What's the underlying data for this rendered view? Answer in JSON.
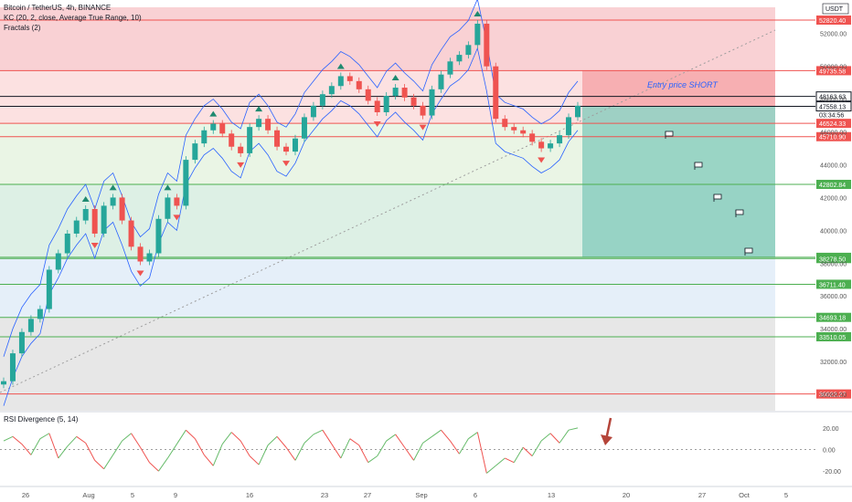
{
  "legend": {
    "symbol": "Bitcoin / TetherUS, 4h, BINANCE",
    "indicator1": "KC (20, 2, close, Average True Range, 10)",
    "indicator2": "Fractals (2)"
  },
  "currency_badge": "USDT",
  "annotation": "Entry price SHORT",
  "rsi_title": "RSI Divergence (5, 14)",
  "chart_data": {
    "type": "line",
    "x_ticks": [
      "26",
      "Aug",
      "5",
      "9",
      "16",
      "23",
      "27",
      "Sep",
      "6",
      "13",
      "20",
      "27",
      "Oct",
      "5"
    ],
    "y_ticks": [
      52000,
      50000,
      48000,
      46000,
      44000,
      42000,
      40000,
      38000,
      36000,
      34000,
      32000,
      30000
    ],
    "y_ticks_labels": [
      "52000.00",
      "50000.00",
      "48000.00",
      "46000.00",
      "44000.00",
      "42000.00",
      "40000.00",
      "38000.00",
      "36000.00",
      "34000.00",
      "32000.00",
      "30000.00"
    ],
    "ylim": [
      29000,
      53600
    ],
    "price_levels": [
      {
        "value": 52820.4,
        "label": "52820.40",
        "color": "#ef5350"
      },
      {
        "value": 49735.58,
        "label": "49735.58",
        "color": "#ef5350"
      },
      {
        "value": 48163.63,
        "label": "48163.63",
        "color": "#131722"
      },
      {
        "value": 47558.13,
        "label": "47558.13",
        "color": "#131722"
      },
      {
        "value": 46524.33,
        "label": "46524.33",
        "color": "#ef5350"
      },
      {
        "value": 45710.9,
        "label": "45710.90",
        "color": "#ef5350"
      },
      {
        "value": 42802.84,
        "label": "42802.84",
        "color": "#4caf50"
      },
      {
        "value": 38355.15,
        "label": "38355.15",
        "color": "#4caf50"
      },
      {
        "value": 38278.5,
        "label": "38278.50",
        "color": "#4caf50"
      },
      {
        "value": 36711.4,
        "label": "36711.40",
        "color": "#4caf50"
      },
      {
        "value": 34693.18,
        "label": "34693.18",
        "color": "#4caf50"
      },
      {
        "value": 33510.05,
        "label": "33510.05",
        "color": "#4caf50"
      },
      {
        "value": 30022.27,
        "label": "30022.27",
        "color": "#ef5350"
      }
    ],
    "countdown": "03:34:56",
    "price_series": [
      30800,
      32500,
      33800,
      34600,
      35200,
      37600,
      38600,
      39800,
      40600,
      41300,
      39800,
      41500,
      42000,
      40600,
      39000,
      38100,
      38600,
      40700,
      42000,
      41500,
      44300,
      45300,
      46100,
      46500,
      45900,
      45100,
      44700,
      46300,
      46800,
      46100,
      45100,
      44800,
      45600,
      46900,
      47600,
      48300,
      48800,
      49400,
      49100,
      48600,
      47900,
      47200,
      48200,
      48700,
      48100,
      47600,
      47000,
      48600,
      49500,
      50300,
      50700,
      51300,
      52600,
      50000,
      46800,
      46300,
      46100,
      45900,
      45400,
      45000,
      45300,
      45800,
      46900,
      47600
    ],
    "rsi_ticks": [
      "20.00",
      "0.00",
      "-20.00"
    ],
    "rsi_ylim": [
      -30,
      30
    ],
    "rsi_series": [
      8,
      12,
      5,
      -5,
      10,
      15,
      -8,
      3,
      12,
      6,
      -10,
      -18,
      -5,
      8,
      15,
      2,
      -12,
      -20,
      -8,
      5,
      18,
      10,
      -5,
      -15,
      5,
      16,
      8,
      -6,
      -14,
      4,
      12,
      2,
      -10,
      6,
      14,
      18,
      5,
      -8,
      10,
      4,
      -12,
      -6,
      8,
      14,
      2,
      -10,
      6,
      12,
      18,
      8,
      -4,
      10,
      16,
      -22,
      -15,
      -8,
      -12,
      2,
      -6,
      8,
      15,
      6,
      18,
      20
    ]
  }
}
